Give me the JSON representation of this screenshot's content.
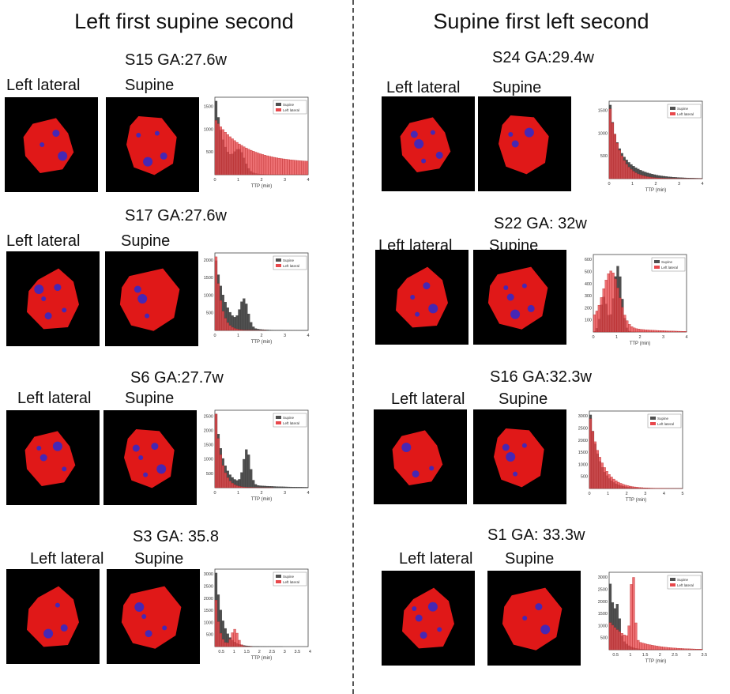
{
  "columns": [
    {
      "title": "Left first supine second",
      "panels": [
        {
          "subject_label": "S15 GA:27.6w",
          "image_labels": [
            "Left lateral",
            "Supine"
          ],
          "chart_data": {
            "type": "bar",
            "xlabel": "TTP (min)",
            "xticks": [
              "0",
              "1",
              "2",
              "3",
              "4"
            ],
            "yticks": [
              "500",
              "1000",
              "1500"
            ],
            "xlim": [
              0,
              4
            ],
            "ylim": [
              0,
              1800
            ],
            "legend": [
              "Supine",
              "Left lateral"
            ]
          }
        },
        {
          "subject_label": "S17 GA:27.6w",
          "image_labels": [
            "Left lateral",
            "Supine"
          ],
          "chart_data": {
            "type": "bar",
            "xlabel": "TTP (min)",
            "xticks": [
              "0",
              "1",
              "2",
              "3",
              "4"
            ],
            "yticks": [
              "500",
              "1000",
              "1500",
              "2000"
            ],
            "xlim": [
              0,
              4
            ],
            "ylim": [
              0,
              2000
            ],
            "legend": [
              "Supine",
              "Left lateral"
            ]
          }
        },
        {
          "subject_label": "S6 GA:27.7w",
          "image_labels": [
            "Left lateral",
            "Supine"
          ],
          "chart_data": {
            "type": "bar",
            "xlabel": "TTP (min)",
            "xticks": [
              "0",
              "1",
              "2",
              "3",
              "4"
            ],
            "yticks": [
              "500",
              "1000",
              "1500",
              "2000",
              "2500"
            ],
            "xlim": [
              0,
              4
            ],
            "ylim": [
              0,
              2600
            ],
            "legend": [
              "Supine",
              "Left lateral"
            ]
          }
        },
        {
          "subject_label": "S3 GA: 35.8",
          "image_labels": [
            "Left lateral",
            "Supine"
          ],
          "chart_data": {
            "type": "bar",
            "xlabel": "TTP (min)",
            "xticks": [
              "0.5",
              "1",
              "1.5",
              "2",
              "2.5",
              "3",
              "3.5",
              "4"
            ],
            "yticks": [
              "500",
              "1000",
              "1500",
              "2000",
              "2500",
              "3000"
            ],
            "xlim": [
              0,
              4
            ],
            "ylim": [
              300,
              3300
            ],
            "legend": [
              "Supine",
              "Left lateral"
            ]
          }
        }
      ]
    },
    {
      "title": "Supine first left second",
      "panels": [
        {
          "subject_label": "S24 GA:29.4w",
          "image_labels": [
            "Left lateral",
            "Supine"
          ],
          "chart_data": {
            "type": "bar",
            "xlabel": "TTP (min)",
            "xticks": [
              "0",
              "1",
              "2",
              "3",
              "4"
            ],
            "yticks": [
              "500",
              "1000",
              "1500"
            ],
            "xlim": [
              0,
              4
            ],
            "ylim": [
              0,
              1900
            ],
            "legend": [
              "Supine",
              "Left lateral"
            ]
          }
        },
        {
          "subject_label": "S22 GA: 32w",
          "image_labels": [
            "Left lateral",
            "Supine"
          ],
          "chart_data": {
            "type": "bar",
            "xlabel": "TTP (min)",
            "xticks": [
              "0",
              "1",
              "2",
              "3",
              "4"
            ],
            "yticks": [
              "100",
              "200",
              "300",
              "400",
              "500",
              "600"
            ],
            "xlim": [
              0,
              4
            ],
            "ylim": [
              0,
              700
            ],
            "legend": [
              "Supine",
              "Left lateral"
            ]
          }
        },
        {
          "subject_label": "S16 GA:32.3w",
          "image_labels": [
            "Left lateral",
            "Supine"
          ],
          "chart_data": {
            "type": "bar",
            "xlabel": "TTP (min)",
            "xticks": [
              "0",
              "1",
              "2",
              "3",
              "4",
              "5"
            ],
            "yticks": [
              "500",
              "1000",
              "1500",
              "2000",
              "2500",
              "3000"
            ],
            "xlim": [
              0,
              5
            ],
            "ylim": [
              0,
              3000
            ],
            "legend": [
              "Supine",
              "Left lateral"
            ]
          }
        },
        {
          "subject_label": "S1 GA: 33.3w",
          "image_labels": [
            "Left lateral",
            "Supine"
          ],
          "chart_data": {
            "type": "bar",
            "xlabel": "TTP (min)",
            "xticks": [
              "0.5",
              "1",
              "1.5",
              "2",
              "2.5",
              "3",
              "3.5"
            ],
            "yticks": [
              "500",
              "1000",
              "1500",
              "2000",
              "2500",
              "3000"
            ],
            "xlim": [
              0,
              3.7
            ],
            "ylim": [
              300,
              3400
            ],
            "legend": [
              "Supine",
              "Left lateral"
            ]
          }
        }
      ]
    }
  ],
  "colors": {
    "supine": "#505050",
    "left_lateral": "#e8484c",
    "placenta": "#e01818",
    "spot": "#2a2ad0"
  }
}
